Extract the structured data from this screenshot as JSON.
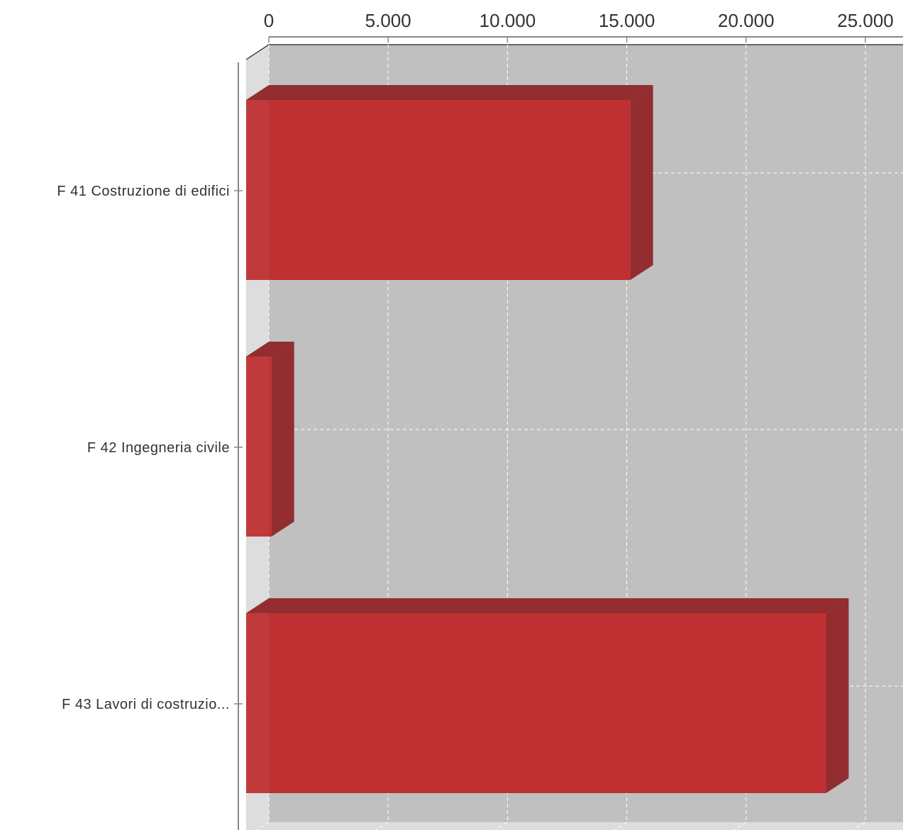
{
  "chart_data": {
    "type": "bar",
    "orientation": "horizontal",
    "three_d": true,
    "categories": [
      "F 41 Costruzione di edifici",
      "F 42 Ingegneria civile",
      "F 43 Lavori di costruzio..."
    ],
    "values": [
      16100,
      50,
      24300
    ],
    "xlim": [
      0,
      25000
    ],
    "xticks": [
      0,
      5000,
      10000,
      15000,
      20000,
      25000
    ],
    "xtick_labels": [
      "0",
      "5.000",
      "10.000",
      "15.000",
      "20.000",
      "25.000"
    ],
    "x_axis_position": "top",
    "title": "",
    "xlabel": "",
    "ylabel": "",
    "grid": true,
    "grid_style": "dashed",
    "legend": "none",
    "colors": {
      "bar_front": "#be3031",
      "bar_top": "#932d2f",
      "bar_side": "#932d2f",
      "plot_back": "#c0c0c0",
      "plot_floor": "#dddddd",
      "grid": "#ffffff",
      "axis": "#888888"
    }
  }
}
